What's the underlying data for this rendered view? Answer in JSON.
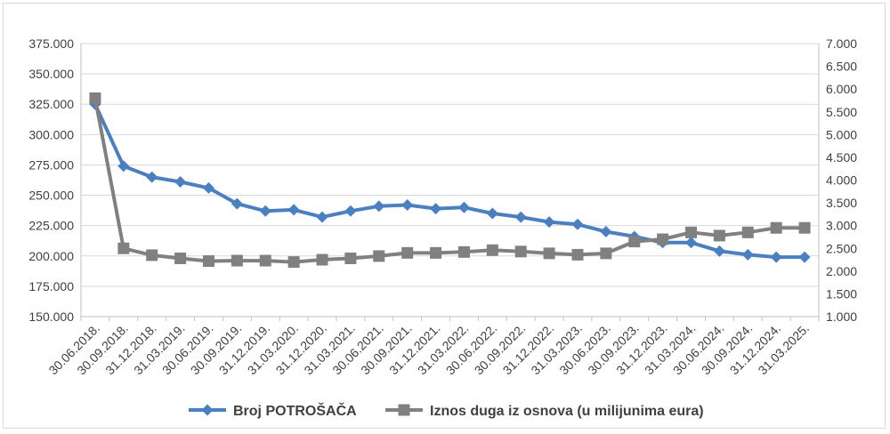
{
  "chart_data": {
    "type": "line",
    "categories": [
      "30.06.2018.",
      "30.09.2018.",
      "31.12.2018.",
      "31.03.2019.",
      "30.06.2019.",
      "30.09.2019.",
      "31.12.2019.",
      "31.03.2020.",
      "31.12.2020.",
      "31.03.2021.",
      "30.06.2021.",
      "30.09.2021.",
      "31.12.2021.",
      "31.03.2022.",
      "30.06.2022.",
      "30.09.2022.",
      "31.12.2022.",
      "31.03.2023.",
      "30.06.2023.",
      "30.09.2023.",
      "31.12.2023.",
      "31.03.2024.",
      "30.06.2024.",
      "30.09.2024.",
      "31.12.2024.",
      "31.03.2025."
    ],
    "series": [
      {
        "name": "Broj POTROŠAČA",
        "axis": "left",
        "color": "#4a7fc1",
        "values": [
          325000,
          274000,
          265000,
          261000,
          256000,
          243000,
          237000,
          238000,
          232000,
          237000,
          241000,
          242000,
          239000,
          240000,
          235000,
          232000,
          228000,
          226000,
          220000,
          216000,
          211000,
          211000,
          204000,
          201000,
          199000,
          199000
        ]
      },
      {
        "name": "Iznos duga iz osnova (u milijunima eura)",
        "axis": "right",
        "color": "#808080",
        "values": [
          5800,
          2500,
          2350,
          2280,
          2220,
          2230,
          2230,
          2200,
          2250,
          2280,
          2330,
          2400,
          2400,
          2420,
          2460,
          2430,
          2390,
          2360,
          2390,
          2650,
          2700,
          2850,
          2780,
          2850,
          2950,
          2950
        ]
      }
    ],
    "y_left": {
      "min": 150000,
      "max": 375000,
      "step": 25000,
      "tick_labels": [
        "150.000",
        "175.000",
        "200.000",
        "225.000",
        "250.000",
        "275.000",
        "300.000",
        "325.000",
        "350.000",
        "375.000"
      ]
    },
    "y_right": {
      "min": 1000,
      "max": 7000,
      "step": 500,
      "tick_labels": [
        "1.000",
        "1.500",
        "2.000",
        "2.500",
        "3.000",
        "3.500",
        "4.000",
        "4.500",
        "5.000",
        "5.500",
        "6.000",
        "6.500",
        "7.000"
      ]
    },
    "grid": true,
    "legend_position": "bottom"
  }
}
